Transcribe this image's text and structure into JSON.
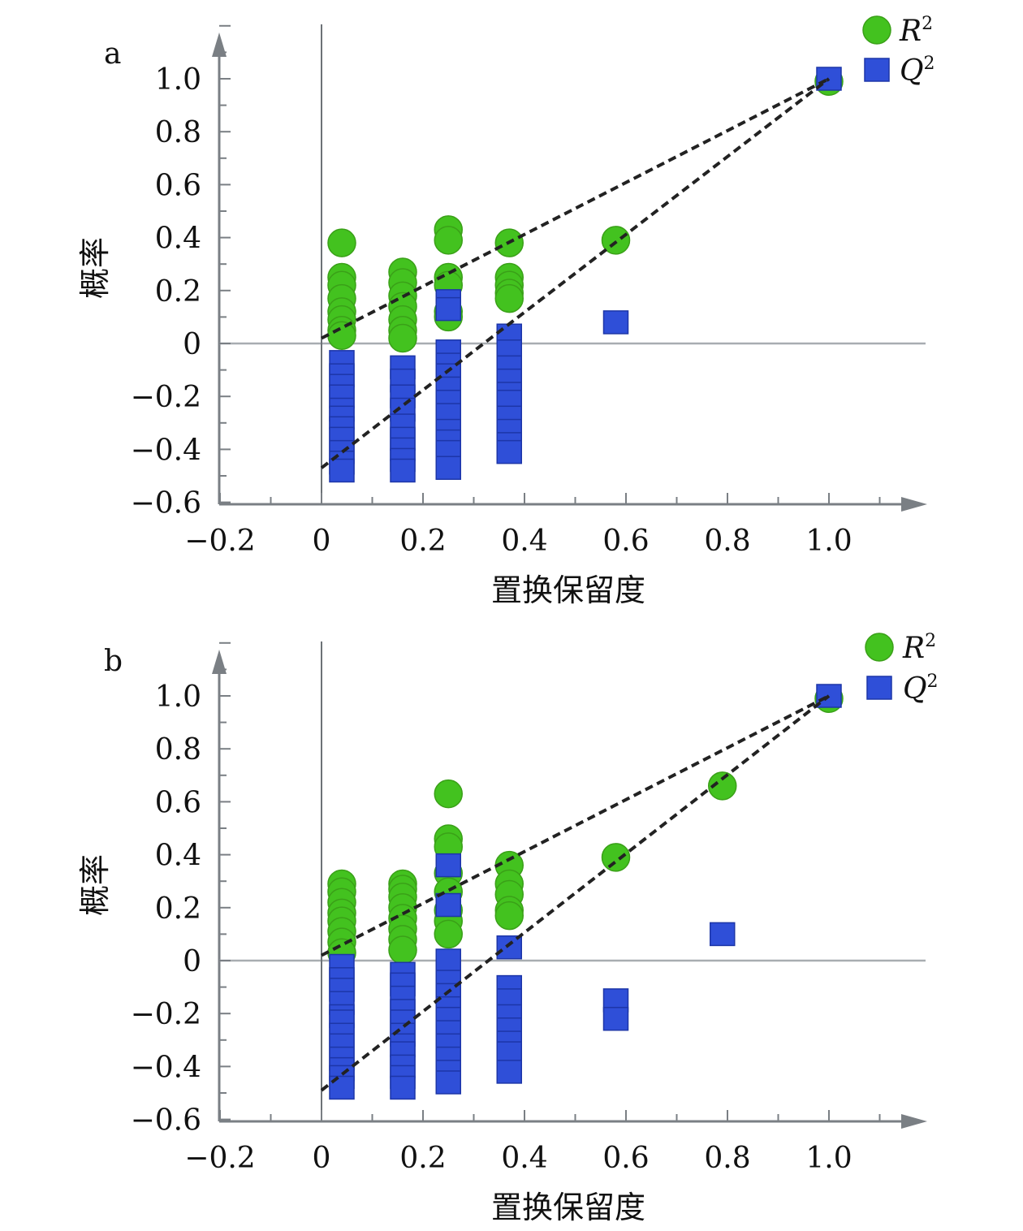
{
  "chart_data": [
    {
      "type": "scatter",
      "panel_label": "a",
      "xlabel": "置换保留度",
      "ylabel": "概率",
      "xlim": [
        -0.2,
        1.2
      ],
      "ylim": [
        -0.6,
        1.2
      ],
      "xticks": [
        "−0.2",
        "0",
        "0.2",
        "0.4",
        "0.6",
        "0.8",
        "1.0"
      ],
      "xtick_values": [
        -0.2,
        0,
        0.2,
        0.4,
        0.6,
        0.8,
        1.0
      ],
      "yticks": [
        "1.0",
        "0.8",
        "0.6",
        "0.4",
        "0.2",
        "0",
        "−0.2",
        "−0.4",
        "−0.6"
      ],
      "ytick_values": [
        1.0,
        0.8,
        0.6,
        0.4,
        0.2,
        0,
        -0.2,
        -0.4,
        -0.6
      ],
      "grid": false,
      "legend_position": "top-right",
      "series": [
        {
          "name": "R2",
          "marker": "circle",
          "color": "#43c21f",
          "points": [
            {
              "x": 0.04,
              "y": 0.38
            },
            {
              "x": 0.04,
              "y": 0.25
            },
            {
              "x": 0.04,
              "y": 0.22
            },
            {
              "x": 0.04,
              "y": 0.17
            },
            {
              "x": 0.04,
              "y": 0.12
            },
            {
              "x": 0.04,
              "y": 0.09
            },
            {
              "x": 0.04,
              "y": 0.05
            },
            {
              "x": 0.04,
              "y": 0.03
            },
            {
              "x": 0.16,
              "y": 0.27
            },
            {
              "x": 0.16,
              "y": 0.23
            },
            {
              "x": 0.16,
              "y": 0.18
            },
            {
              "x": 0.16,
              "y": 0.14
            },
            {
              "x": 0.16,
              "y": 0.09
            },
            {
              "x": 0.16,
              "y": 0.05
            },
            {
              "x": 0.16,
              "y": 0.02
            },
            {
              "x": 0.25,
              "y": 0.43
            },
            {
              "x": 0.25,
              "y": 0.39
            },
            {
              "x": 0.25,
              "y": 0.25
            },
            {
              "x": 0.25,
              "y": 0.22
            },
            {
              "x": 0.25,
              "y": 0.12
            },
            {
              "x": 0.25,
              "y": 0.1
            },
            {
              "x": 0.37,
              "y": 0.38
            },
            {
              "x": 0.37,
              "y": 0.25
            },
            {
              "x": 0.37,
              "y": 0.22
            },
            {
              "x": 0.37,
              "y": 0.19
            },
            {
              "x": 0.37,
              "y": 0.17
            },
            {
              "x": 0.58,
              "y": 0.39
            },
            {
              "x": 1.0,
              "y": 0.99
            }
          ]
        },
        {
          "name": "Q2",
          "marker": "square",
          "color": "#2f4fd8",
          "points": [
            {
              "x": 0.04,
              "y": -0.07
            },
            {
              "x": 0.04,
              "y": -0.12
            },
            {
              "x": 0.04,
              "y": -0.16
            },
            {
              "x": 0.04,
              "y": -0.2
            },
            {
              "x": 0.04,
              "y": -0.25
            },
            {
              "x": 0.04,
              "y": -0.28
            },
            {
              "x": 0.04,
              "y": -0.32
            },
            {
              "x": 0.04,
              "y": -0.36
            },
            {
              "x": 0.04,
              "y": -0.41
            },
            {
              "x": 0.04,
              "y": -0.45
            },
            {
              "x": 0.04,
              "y": -0.48
            },
            {
              "x": 0.16,
              "y": -0.09
            },
            {
              "x": 0.16,
              "y": -0.14
            },
            {
              "x": 0.16,
              "y": -0.2
            },
            {
              "x": 0.16,
              "y": -0.25
            },
            {
              "x": 0.16,
              "y": -0.31
            },
            {
              "x": 0.16,
              "y": -0.36
            },
            {
              "x": 0.16,
              "y": -0.4
            },
            {
              "x": 0.16,
              "y": -0.44
            },
            {
              "x": 0.16,
              "y": -0.48
            },
            {
              "x": 0.25,
              "y": 0.16
            },
            {
              "x": 0.25,
              "y": 0.13
            },
            {
              "x": 0.25,
              "y": -0.03
            },
            {
              "x": 0.25,
              "y": -0.08
            },
            {
              "x": 0.25,
              "y": -0.12
            },
            {
              "x": 0.25,
              "y": -0.17
            },
            {
              "x": 0.25,
              "y": -0.22
            },
            {
              "x": 0.25,
              "y": -0.27
            },
            {
              "x": 0.25,
              "y": -0.33
            },
            {
              "x": 0.25,
              "y": -0.37
            },
            {
              "x": 0.25,
              "y": -0.41
            },
            {
              "x": 0.25,
              "y": -0.47
            },
            {
              "x": 0.37,
              "y": 0.03
            },
            {
              "x": 0.37,
              "y": -0.03
            },
            {
              "x": 0.37,
              "y": -0.09
            },
            {
              "x": 0.37,
              "y": -0.14
            },
            {
              "x": 0.37,
              "y": -0.19
            },
            {
              "x": 0.37,
              "y": -0.22
            },
            {
              "x": 0.37,
              "y": -0.28
            },
            {
              "x": 0.37,
              "y": -0.33
            },
            {
              "x": 0.37,
              "y": -0.38
            },
            {
              "x": 0.37,
              "y": -0.41
            },
            {
              "x": 0.58,
              "y": 0.08
            },
            {
              "x": 1.0,
              "y": 1.0
            }
          ]
        }
      ],
      "trend_lines": [
        {
          "series": "R2",
          "from": [
            0.0,
            0.02
          ],
          "to": [
            1.0,
            1.0
          ],
          "style": "dashed"
        },
        {
          "series": "Q2",
          "from": [
            0.0,
            -0.47
          ],
          "to": [
            1.0,
            1.0
          ],
          "style": "dashed"
        }
      ]
    },
    {
      "type": "scatter",
      "panel_label": "b",
      "xlabel": "置换保留度",
      "ylabel": "概率",
      "xlim": [
        -0.2,
        1.2
      ],
      "ylim": [
        -0.6,
        1.2
      ],
      "xticks": [
        "−0.2",
        "0",
        "0.2",
        "0.4",
        "0.6",
        "0.8",
        "1.0"
      ],
      "xtick_values": [
        -0.2,
        0,
        0.2,
        0.4,
        0.6,
        0.8,
        1.0
      ],
      "yticks": [
        "1.0",
        "0.8",
        "0.6",
        "0.4",
        "0.2",
        "0",
        "−0.2",
        "−0.4",
        "−0.6"
      ],
      "ytick_values": [
        1.0,
        0.8,
        0.6,
        0.4,
        0.2,
        0,
        -0.2,
        -0.4,
        -0.6
      ],
      "grid": false,
      "legend_position": "top-right",
      "series": [
        {
          "name": "R2",
          "marker": "circle",
          "color": "#43c21f",
          "points": [
            {
              "x": 0.04,
              "y": 0.29
            },
            {
              "x": 0.04,
              "y": 0.26
            },
            {
              "x": 0.04,
              "y": 0.22
            },
            {
              "x": 0.04,
              "y": 0.18
            },
            {
              "x": 0.04,
              "y": 0.15
            },
            {
              "x": 0.04,
              "y": 0.11
            },
            {
              "x": 0.04,
              "y": 0.07
            },
            {
              "x": 0.04,
              "y": 0.03
            },
            {
              "x": 0.16,
              "y": 0.29
            },
            {
              "x": 0.16,
              "y": 0.27
            },
            {
              "x": 0.16,
              "y": 0.24
            },
            {
              "x": 0.16,
              "y": 0.2
            },
            {
              "x": 0.16,
              "y": 0.16
            },
            {
              "x": 0.16,
              "y": 0.12
            },
            {
              "x": 0.16,
              "y": 0.08
            },
            {
              "x": 0.16,
              "y": 0.04
            },
            {
              "x": 0.25,
              "y": 0.63
            },
            {
              "x": 0.25,
              "y": 0.46
            },
            {
              "x": 0.25,
              "y": 0.43
            },
            {
              "x": 0.25,
              "y": 0.33
            },
            {
              "x": 0.25,
              "y": 0.26
            },
            {
              "x": 0.25,
              "y": 0.19
            },
            {
              "x": 0.25,
              "y": 0.15
            },
            {
              "x": 0.25,
              "y": 0.1
            },
            {
              "x": 0.37,
              "y": 0.36
            },
            {
              "x": 0.37,
              "y": 0.29
            },
            {
              "x": 0.37,
              "y": 0.25
            },
            {
              "x": 0.37,
              "y": 0.19
            },
            {
              "x": 0.37,
              "y": 0.17
            },
            {
              "x": 0.58,
              "y": 0.39
            },
            {
              "x": 0.79,
              "y": 0.66
            },
            {
              "x": 1.0,
              "y": 0.99
            }
          ]
        },
        {
          "name": "Q2",
          "marker": "square",
          "color": "#2f4fd8",
          "points": [
            {
              "x": 0.04,
              "y": -0.02
            },
            {
              "x": 0.04,
              "y": -0.07
            },
            {
              "x": 0.04,
              "y": -0.11
            },
            {
              "x": 0.04,
              "y": -0.16
            },
            {
              "x": 0.04,
              "y": -0.21
            },
            {
              "x": 0.04,
              "y": -0.23
            },
            {
              "x": 0.04,
              "y": -0.28
            },
            {
              "x": 0.04,
              "y": -0.32
            },
            {
              "x": 0.04,
              "y": -0.37
            },
            {
              "x": 0.04,
              "y": -0.41
            },
            {
              "x": 0.04,
              "y": -0.44
            },
            {
              "x": 0.04,
              "y": -0.48
            },
            {
              "x": 0.16,
              "y": -0.05
            },
            {
              "x": 0.16,
              "y": -0.09
            },
            {
              "x": 0.16,
              "y": -0.14
            },
            {
              "x": 0.16,
              "y": -0.19
            },
            {
              "x": 0.16,
              "y": -0.23
            },
            {
              "x": 0.16,
              "y": -0.28
            },
            {
              "x": 0.16,
              "y": -0.32
            },
            {
              "x": 0.16,
              "y": -0.35
            },
            {
              "x": 0.16,
              "y": -0.4
            },
            {
              "x": 0.16,
              "y": -0.44
            },
            {
              "x": 0.16,
              "y": -0.48
            },
            {
              "x": 0.25,
              "y": 0.36
            },
            {
              "x": 0.25,
              "y": 0.21
            },
            {
              "x": 0.25,
              "y": 0.0
            },
            {
              "x": 0.25,
              "y": -0.08
            },
            {
              "x": 0.25,
              "y": -0.13
            },
            {
              "x": 0.25,
              "y": -0.18
            },
            {
              "x": 0.25,
              "y": -0.22
            },
            {
              "x": 0.25,
              "y": -0.27
            },
            {
              "x": 0.25,
              "y": -0.32
            },
            {
              "x": 0.25,
              "y": -0.37
            },
            {
              "x": 0.25,
              "y": -0.42
            },
            {
              "x": 0.25,
              "y": -0.46
            },
            {
              "x": 0.37,
              "y": 0.05
            },
            {
              "x": 0.37,
              "y": -0.1
            },
            {
              "x": 0.37,
              "y": -0.15
            },
            {
              "x": 0.37,
              "y": -0.21
            },
            {
              "x": 0.37,
              "y": -0.26
            },
            {
              "x": 0.37,
              "y": -0.31
            },
            {
              "x": 0.37,
              "y": -0.35
            },
            {
              "x": 0.37,
              "y": -0.42
            },
            {
              "x": 0.58,
              "y": -0.15
            },
            {
              "x": 0.58,
              "y": -0.22
            },
            {
              "x": 0.79,
              "y": 0.1
            },
            {
              "x": 1.0,
              "y": 1.0
            }
          ]
        }
      ],
      "trend_lines": [
        {
          "series": "R2",
          "from": [
            0.0,
            0.02
          ],
          "to": [
            1.0,
            1.0
          ],
          "style": "dashed"
        },
        {
          "series": "Q2",
          "from": [
            0.0,
            -0.49
          ],
          "to": [
            1.0,
            1.0
          ],
          "style": "dashed"
        }
      ]
    }
  ]
}
